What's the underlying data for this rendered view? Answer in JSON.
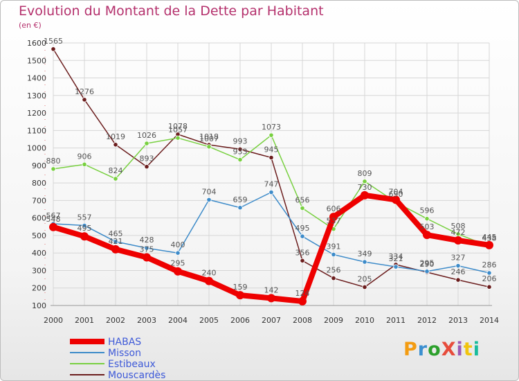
{
  "title": "Evolution du Montant de la Dette par Habitant",
  "subtitle": "(en €)",
  "logo": "ProXiti",
  "logo_colors": [
    "#f39c12",
    "#3b8fd0",
    "#2ca02c",
    "#e74c3c",
    "#9b59b6",
    "#f1c40f",
    "#1abc9c"
  ],
  "chart_data": {
    "type": "line",
    "title": "Evolution du Montant de la Dette par Habitant",
    "ylabel": "(en €)",
    "xlabel": "",
    "ylim": [
      100,
      1600
    ],
    "yticks": [
      100,
      200,
      300,
      400,
      500,
      600,
      700,
      800,
      900,
      1000,
      1100,
      1200,
      1300,
      1400,
      1500,
      1600
    ],
    "grid": true,
    "legend_position": "bottom-left",
    "x": [
      "2000",
      "2001",
      "2002",
      "2003",
      "2004",
      "2005",
      "2006",
      "2007",
      "2008",
      "2009",
      "2010",
      "2011",
      "2012",
      "2013",
      "2014"
    ],
    "series": [
      {
        "name": "HABAS",
        "color": "#ee0000",
        "values": [
          548,
          495,
          421,
          375,
          295,
          240,
          159,
          142,
          124,
          606,
          730,
          704,
          503,
          472,
          445
        ]
      },
      {
        "name": "Misson",
        "color": "#3d8bc9",
        "values": [
          567,
          557,
          465,
          428,
          400,
          704,
          659,
          747,
          495,
          391,
          349,
          321,
          295,
          327,
          286
        ]
      },
      {
        "name": "Estibeaux",
        "color": "#78d040",
        "values": [
          880,
          906,
          824,
          1026,
          1057,
          1007,
          933,
          1073,
          656,
          537,
          809,
          690,
          596,
          508,
          438
        ]
      },
      {
        "name": "Mouscardès",
        "color": "#6b1d1d",
        "values": [
          1565,
          1276,
          1019,
          893,
          1078,
          1018,
          993,
          945,
          356,
          256,
          205,
          334,
          290,
          246,
          206
        ]
      }
    ]
  }
}
